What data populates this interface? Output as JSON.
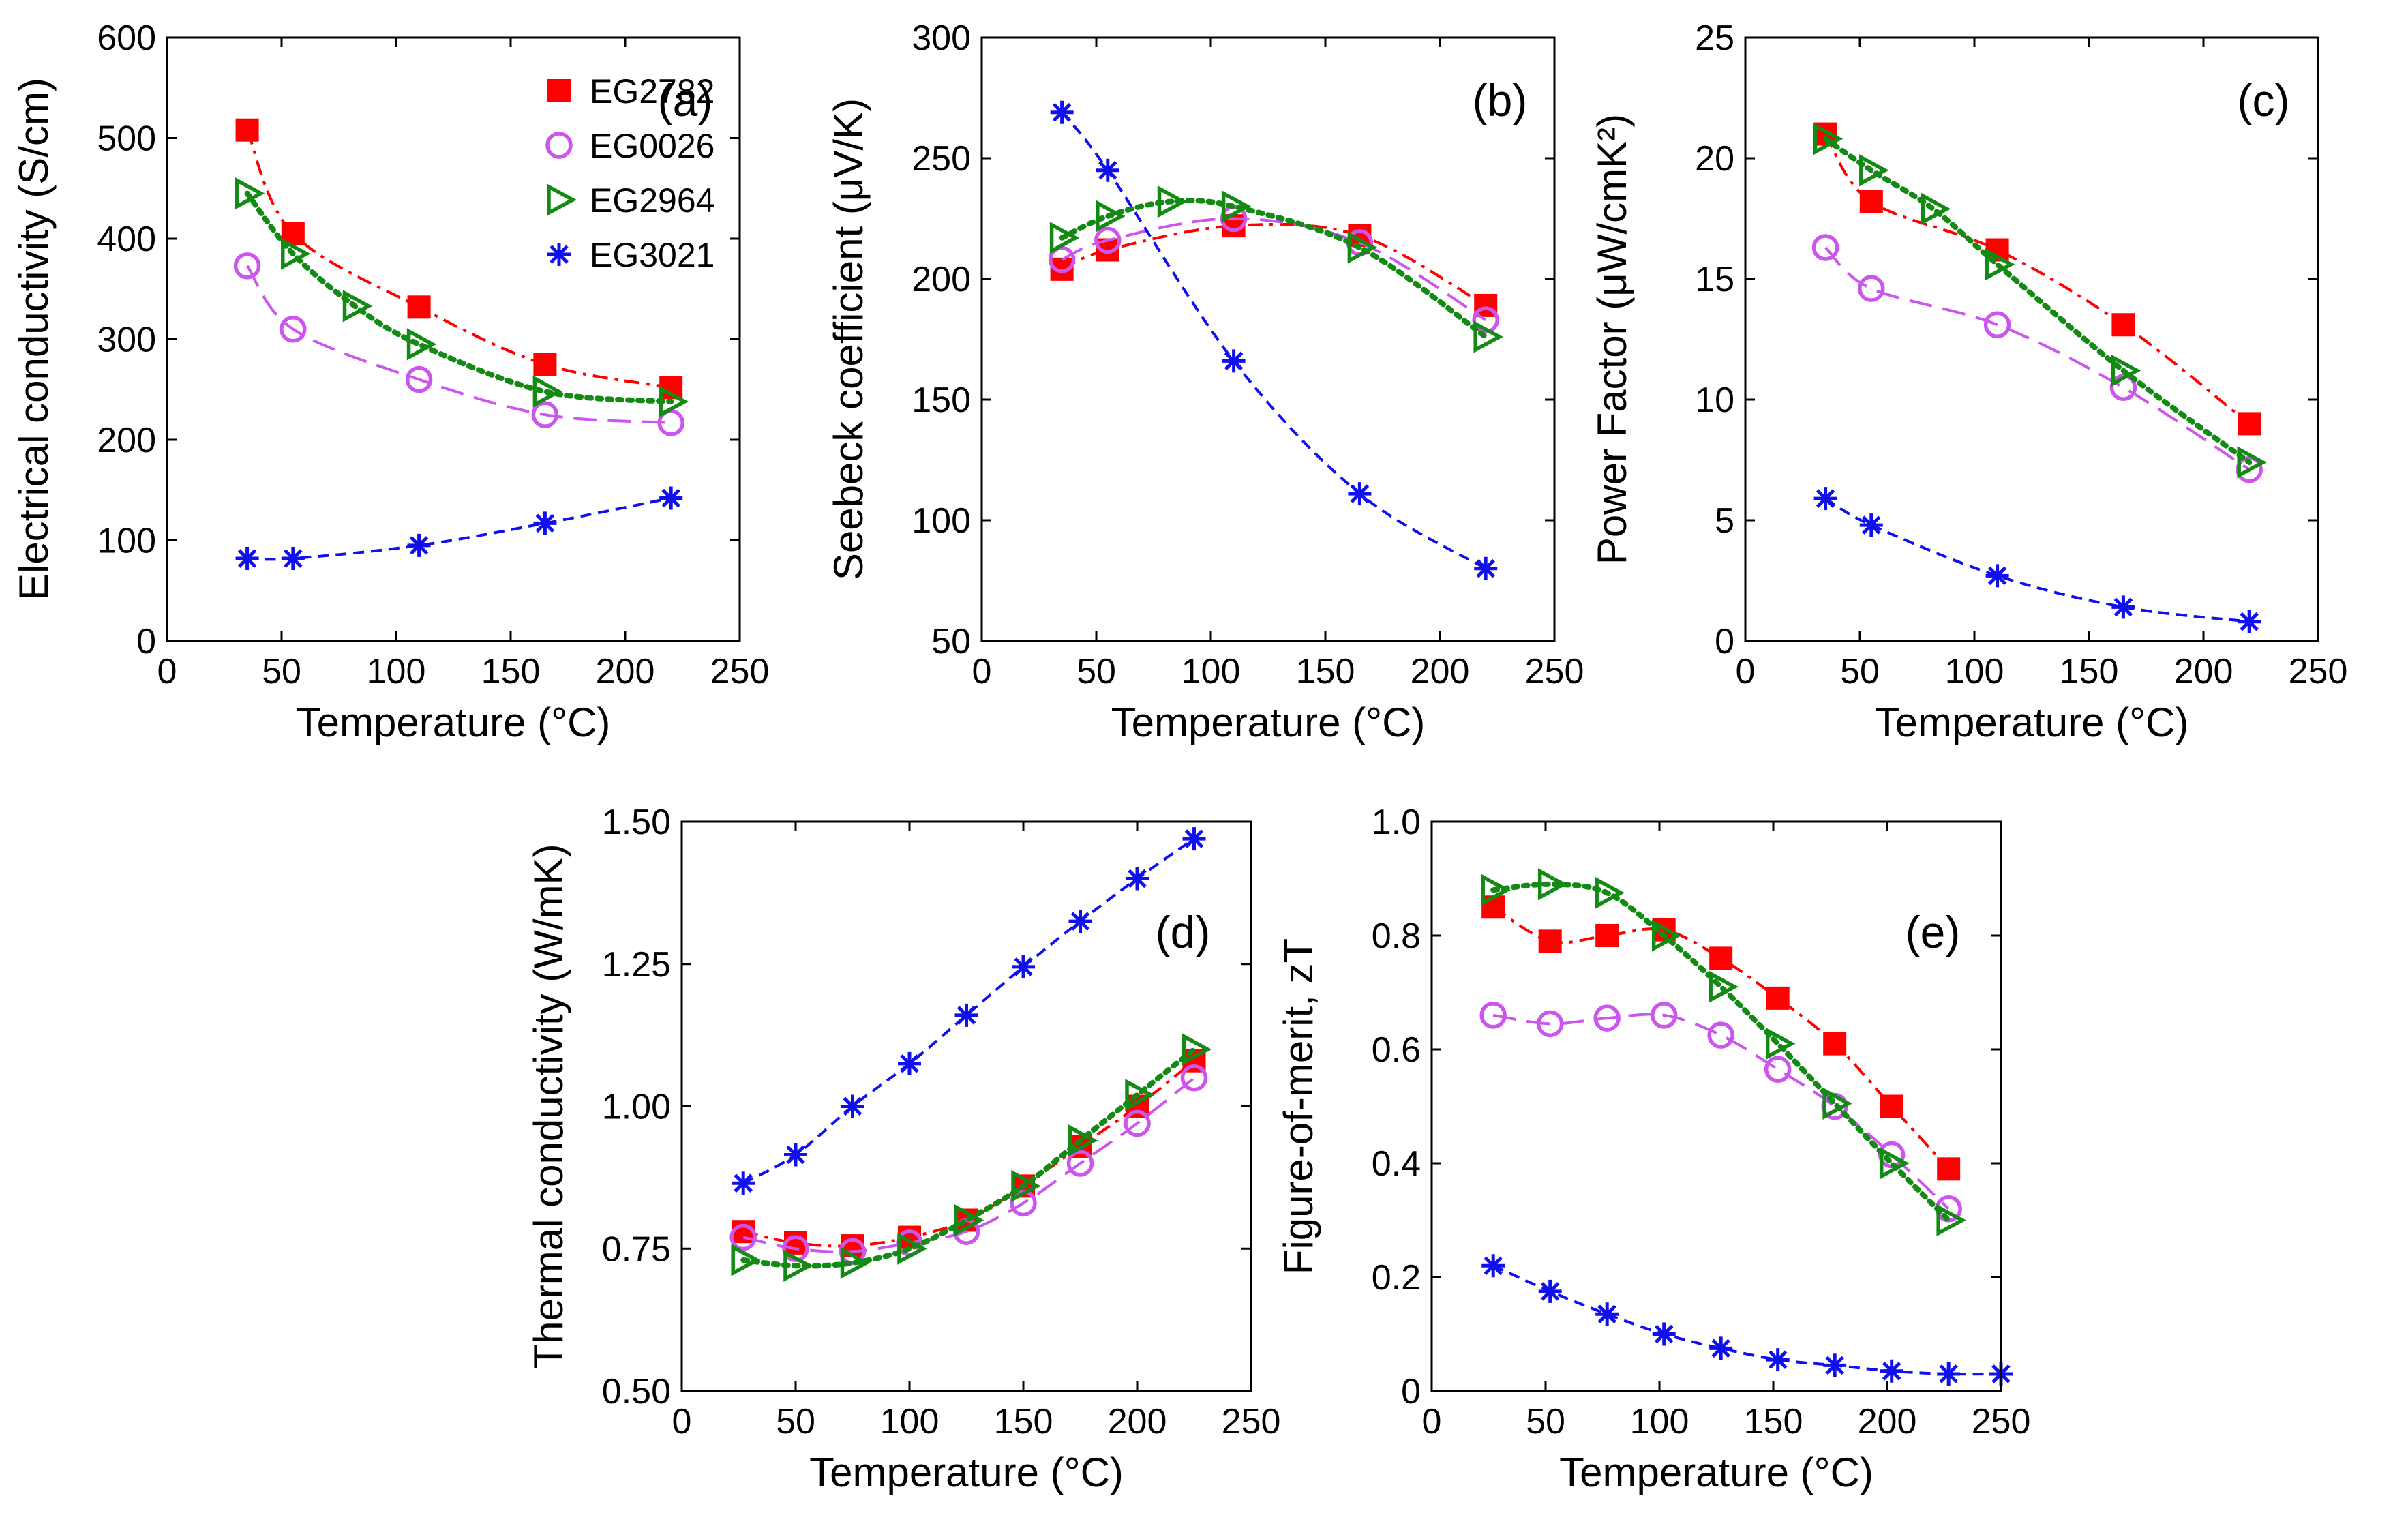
{
  "colors": {
    "EG2782": "#ff0000",
    "EG0026": "#cc55ee",
    "EG2964": "#138a13",
    "EG3021": "#1010ee"
  },
  "chart_data": [
    {
      "type": "scatter",
      "panel_label": "(a)",
      "xlabel": "Temperature (°C)",
      "ylabel": "Electrical conductivity (S/cm)",
      "xlim": [
        0,
        250
      ],
      "ylim": [
        0,
        600
      ],
      "xticks": [
        0,
        50,
        100,
        150,
        200,
        250
      ],
      "yticks": [
        0,
        100,
        200,
        300,
        400,
        500,
        600
      ],
      "legend": [
        "EG2782",
        "EG0026",
        "EG2964",
        "EG3021"
      ],
      "legend_position": "top-right",
      "series": [
        {
          "name": "EG2782",
          "marker": "square",
          "line": "dashdot",
          "x": [
            35,
            55,
            110,
            165,
            220
          ],
          "y": [
            508,
            405,
            332,
            275,
            252
          ]
        },
        {
          "name": "EG0026",
          "marker": "circle",
          "line": "longdash",
          "x": [
            35,
            55,
            110,
            165,
            220
          ],
          "y": [
            373,
            310,
            260,
            225,
            217
          ]
        },
        {
          "name": "EG2964",
          "marker": "triangle-right",
          "line": "dotted",
          "x": [
            35,
            55,
            82,
            110,
            165,
            220
          ],
          "y": [
            445,
            385,
            333,
            295,
            248,
            238
          ]
        },
        {
          "name": "EG3021",
          "marker": "asterisk",
          "line": "dashed",
          "x": [
            35,
            55,
            110,
            165,
            220
          ],
          "y": [
            82,
            82,
            95,
            117,
            142
          ]
        }
      ]
    },
    {
      "type": "scatter",
      "panel_label": "(b)",
      "xlabel": "Temperature (°C)",
      "ylabel": "Seebeck coefficient (μV/K)",
      "xlim": [
        0,
        250
      ],
      "ylim": [
        50,
        300
      ],
      "xticks": [
        0,
        50,
        100,
        150,
        200,
        250
      ],
      "yticks": [
        50,
        100,
        150,
        200,
        250,
        300
      ],
      "series": [
        {
          "name": "EG2782",
          "marker": "square",
          "line": "dashdot",
          "x": [
            35,
            55,
            110,
            165,
            220
          ],
          "y": [
            204,
            212,
            222,
            218,
            189
          ]
        },
        {
          "name": "EG0026",
          "marker": "circle",
          "line": "longdash",
          "x": [
            35,
            55,
            110,
            165,
            220
          ],
          "y": [
            208,
            216,
            225,
            215,
            183
          ]
        },
        {
          "name": "EG2964",
          "marker": "triangle-right",
          "line": "dotted",
          "x": [
            35,
            55,
            82,
            110,
            165,
            220
          ],
          "y": [
            217,
            226,
            232,
            230,
            213,
            176
          ]
        },
        {
          "name": "EG3021",
          "marker": "asterisk",
          "line": "dashed",
          "x": [
            35,
            55,
            110,
            165,
            220
          ],
          "y": [
            269,
            245,
            166,
            111,
            80
          ]
        }
      ]
    },
    {
      "type": "scatter",
      "panel_label": "(c)",
      "xlabel": "Temperature (°C)",
      "ylabel": "Power Factor (μW/cmK²)",
      "xlim": [
        0,
        250
      ],
      "ylim": [
        0,
        25
      ],
      "xticks": [
        0,
        50,
        100,
        150,
        200,
        250
      ],
      "yticks": [
        0,
        5,
        10,
        15,
        20,
        25
      ],
      "series": [
        {
          "name": "EG2782",
          "marker": "square",
          "line": "dashdot",
          "x": [
            35,
            55,
            110,
            165,
            220
          ],
          "y": [
            21.0,
            18.2,
            16.2,
            13.1,
            9.0
          ]
        },
        {
          "name": "EG0026",
          "marker": "circle",
          "line": "longdash",
          "x": [
            35,
            55,
            110,
            165,
            220
          ],
          "y": [
            16.3,
            14.6,
            13.1,
            10.5,
            7.1
          ]
        },
        {
          "name": "EG2964",
          "marker": "triangle-right",
          "line": "dotted",
          "x": [
            35,
            55,
            82,
            110,
            165,
            220
          ],
          "y": [
            20.8,
            19.5,
            17.9,
            15.6,
            11.2,
            7.4
          ]
        },
        {
          "name": "EG3021",
          "marker": "asterisk",
          "line": "dashed",
          "x": [
            35,
            55,
            110,
            165,
            220
          ],
          "y": [
            5.9,
            4.8,
            2.7,
            1.4,
            0.8
          ]
        }
      ]
    },
    {
      "type": "scatter",
      "panel_label": "(d)",
      "xlabel": "Temperature (°C)",
      "ylabel": "Thermal conductivity (W/mK)",
      "xlim": [
        0,
        250
      ],
      "ylim": [
        0.5,
        1.5
      ],
      "xticks": [
        0,
        50,
        100,
        150,
        200,
        250
      ],
      "yticks": [
        0.5,
        0.75,
        1.0,
        1.25,
        1.5
      ],
      "ytick_labels": [
        "0.50",
        "0.75",
        "1.00",
        "1.25",
        "1.50"
      ],
      "series": [
        {
          "name": "EG2782",
          "marker": "square",
          "line": "dashdot",
          "x": [
            27,
            50,
            75,
            100,
            125,
            150,
            175,
            200,
            225
          ],
          "y": [
            0.78,
            0.76,
            0.755,
            0.77,
            0.8,
            0.86,
            0.93,
            1.0,
            1.08
          ]
        },
        {
          "name": "EG0026",
          "marker": "circle",
          "line": "longdash",
          "x": [
            27,
            50,
            75,
            100,
            125,
            150,
            175,
            200,
            225
          ],
          "y": [
            0.77,
            0.75,
            0.745,
            0.76,
            0.78,
            0.83,
            0.9,
            0.97,
            1.05
          ]
        },
        {
          "name": "EG2964",
          "marker": "triangle-right",
          "line": "dotted",
          "x": [
            27,
            50,
            75,
            100,
            125,
            150,
            175,
            200,
            225
          ],
          "y": [
            0.73,
            0.72,
            0.725,
            0.75,
            0.8,
            0.86,
            0.94,
            1.02,
            1.1
          ]
        },
        {
          "name": "EG3021",
          "marker": "asterisk",
          "line": "dashed",
          "x": [
            27,
            50,
            75,
            100,
            125,
            150,
            175,
            200,
            225
          ],
          "y": [
            0.865,
            0.915,
            1.0,
            1.075,
            1.16,
            1.245,
            1.325,
            1.4,
            1.47
          ]
        }
      ]
    },
    {
      "type": "scatter",
      "panel_label": "(e)",
      "xlabel": "Temperature (°C)",
      "ylabel": "Figure-of-merit, zT",
      "xlim": [
        0,
        250
      ],
      "ylim": [
        0,
        1.0
      ],
      "xticks": [
        0,
        50,
        100,
        150,
        200,
        250
      ],
      "yticks": [
        0,
        0.2,
        0.4,
        0.6,
        0.8,
        1.0
      ],
      "ytick_labels": [
        "0",
        "0.2",
        "0.4",
        "0.6",
        "0.8",
        "1.0"
      ],
      "series": [
        {
          "name": "EG2782",
          "marker": "square",
          "line": "dashdot",
          "x": [
            27,
            52,
            77,
            102,
            127,
            152,
            177,
            202,
            227
          ],
          "y": [
            0.85,
            0.79,
            0.8,
            0.81,
            0.76,
            0.69,
            0.61,
            0.5,
            0.39
          ]
        },
        {
          "name": "EG0026",
          "marker": "circle",
          "line": "longdash",
          "x": [
            27,
            52,
            77,
            102,
            127,
            152,
            177,
            202,
            227
          ],
          "y": [
            0.66,
            0.645,
            0.655,
            0.66,
            0.625,
            0.565,
            0.5,
            0.415,
            0.32
          ]
        },
        {
          "name": "EG2964",
          "marker": "triangle-right",
          "line": "dotted",
          "x": [
            27,
            52,
            77,
            102,
            127,
            152,
            177,
            202,
            227
          ],
          "y": [
            0.88,
            0.89,
            0.875,
            0.8,
            0.71,
            0.61,
            0.505,
            0.4,
            0.3
          ]
        },
        {
          "name": "EG3021",
          "marker": "asterisk",
          "line": "dashed",
          "x": [
            27,
            52,
            77,
            102,
            127,
            152,
            177,
            202,
            227,
            250
          ],
          "y": [
            0.22,
            0.175,
            0.135,
            0.1,
            0.075,
            0.055,
            0.045,
            0.035,
            0.03,
            0.03
          ]
        }
      ]
    }
  ]
}
